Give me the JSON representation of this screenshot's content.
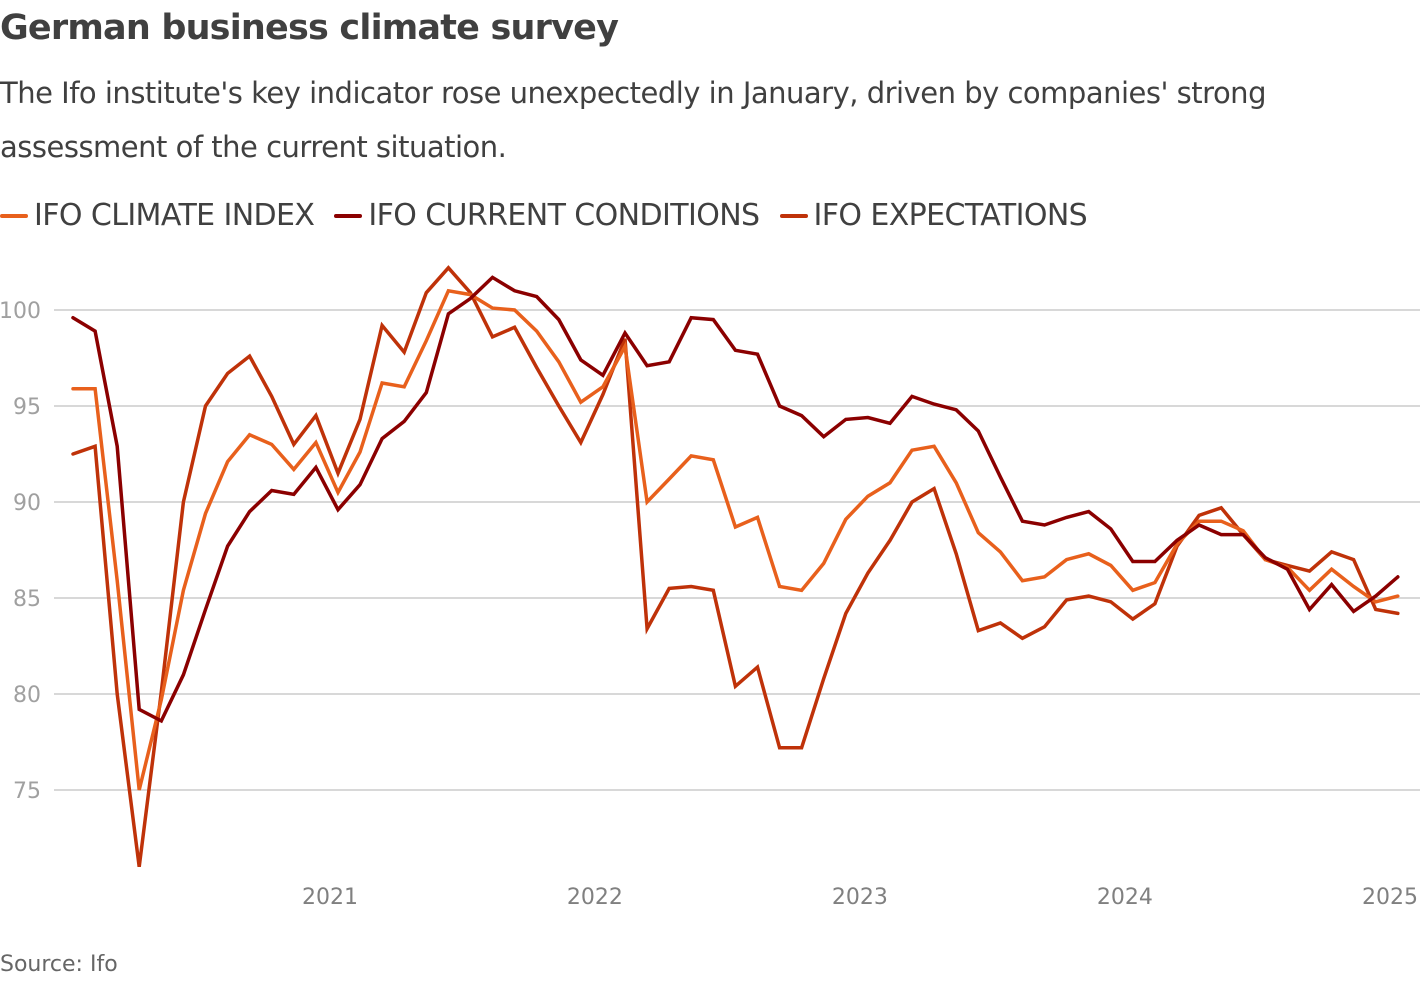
{
  "header": {
    "title": "German business climate survey",
    "subtitle": "The Ifo institute's key indicator rose unexpectedly in January, driven by companies' strong assessment of the current situation."
  },
  "footer": {
    "source": "Source: Ifo"
  },
  "chart_data": {
    "type": "line",
    "title": "German business climate survey",
    "xlabel": "",
    "ylabel": "",
    "ylim": [
      70.5,
      103
    ],
    "yticks": [
      75,
      80,
      85,
      90,
      95,
      100
    ],
    "xtick_labels": [
      "2021",
      "2022",
      "2023",
      "2024",
      "2025"
    ],
    "xtick_index": [
      12,
      24,
      36,
      48,
      60
    ],
    "x_start": "Jan 2020",
    "x_end": "Jan 2025",
    "x_frequency": "monthly",
    "grid": true,
    "legend_position": "top-left",
    "series": [
      {
        "name": "IFO CLIMATE INDEX",
        "color": "#e8601c",
        "values": [
          95.9,
          95.9,
          85.9,
          75.0,
          79.7,
          85.4,
          89.4,
          92.1,
          93.5,
          93.0,
          91.7,
          93.1,
          90.5,
          92.6,
          96.2,
          96.0,
          98.4,
          101.0,
          100.8,
          100.1,
          100.0,
          98.9,
          97.3,
          95.2,
          96.0,
          98.1,
          90.0,
          91.2,
          92.4,
          92.2,
          88.7,
          89.2,
          85.6,
          85.4,
          86.8,
          89.1,
          90.3,
          91.0,
          92.7,
          92.9,
          91.0,
          88.4,
          87.4,
          85.9,
          86.1,
          87.0,
          87.3,
          86.7,
          85.4,
          85.8,
          87.8,
          89.0,
          89.0,
          88.5,
          87.0,
          86.6,
          85.4,
          86.5,
          85.6,
          84.8,
          85.1
        ]
      },
      {
        "name": "IFO CURRENT CONDITIONS",
        "color": "#8b0000",
        "values": [
          99.6,
          98.9,
          92.9,
          79.2,
          78.6,
          81.0,
          84.4,
          87.7,
          89.5,
          90.6,
          90.4,
          91.8,
          89.6,
          90.9,
          93.3,
          94.2,
          95.7,
          99.8,
          100.6,
          101.7,
          101.0,
          100.7,
          99.5,
          97.4,
          96.6,
          98.8,
          97.1,
          97.3,
          99.6,
          99.5,
          97.9,
          97.7,
          95.0,
          94.5,
          93.4,
          94.3,
          94.4,
          94.1,
          95.5,
          95.1,
          94.8,
          93.7,
          91.3,
          89.0,
          88.8,
          89.2,
          89.5,
          88.6,
          86.9,
          86.9,
          88.0,
          88.8,
          88.3,
          88.3,
          87.1,
          86.5,
          84.4,
          85.7,
          84.3,
          85.1,
          86.1
        ]
      },
      {
        "name": "IFO EXPECTATIONS",
        "color": "#bf3209",
        "values": [
          92.5,
          92.9,
          80.0,
          71.0,
          80.1,
          90.0,
          95.0,
          96.7,
          97.6,
          95.5,
          93.0,
          94.5,
          91.5,
          94.3,
          99.2,
          97.8,
          100.9,
          102.2,
          100.9,
          98.6,
          99.1,
          97.0,
          95.0,
          93.1,
          95.6,
          98.5,
          83.4,
          85.5,
          85.6,
          85.4,
          80.4,
          81.4,
          77.2,
          77.2,
          80.8,
          84.2,
          86.3,
          88.0,
          90.0,
          90.7,
          87.3,
          83.3,
          83.7,
          82.9,
          83.5,
          84.9,
          85.1,
          84.8,
          83.9,
          84.7,
          87.7,
          89.3,
          89.7,
          88.3,
          87.0,
          86.7,
          86.4,
          87.4,
          87.0,
          84.4,
          84.2
        ]
      }
    ]
  }
}
